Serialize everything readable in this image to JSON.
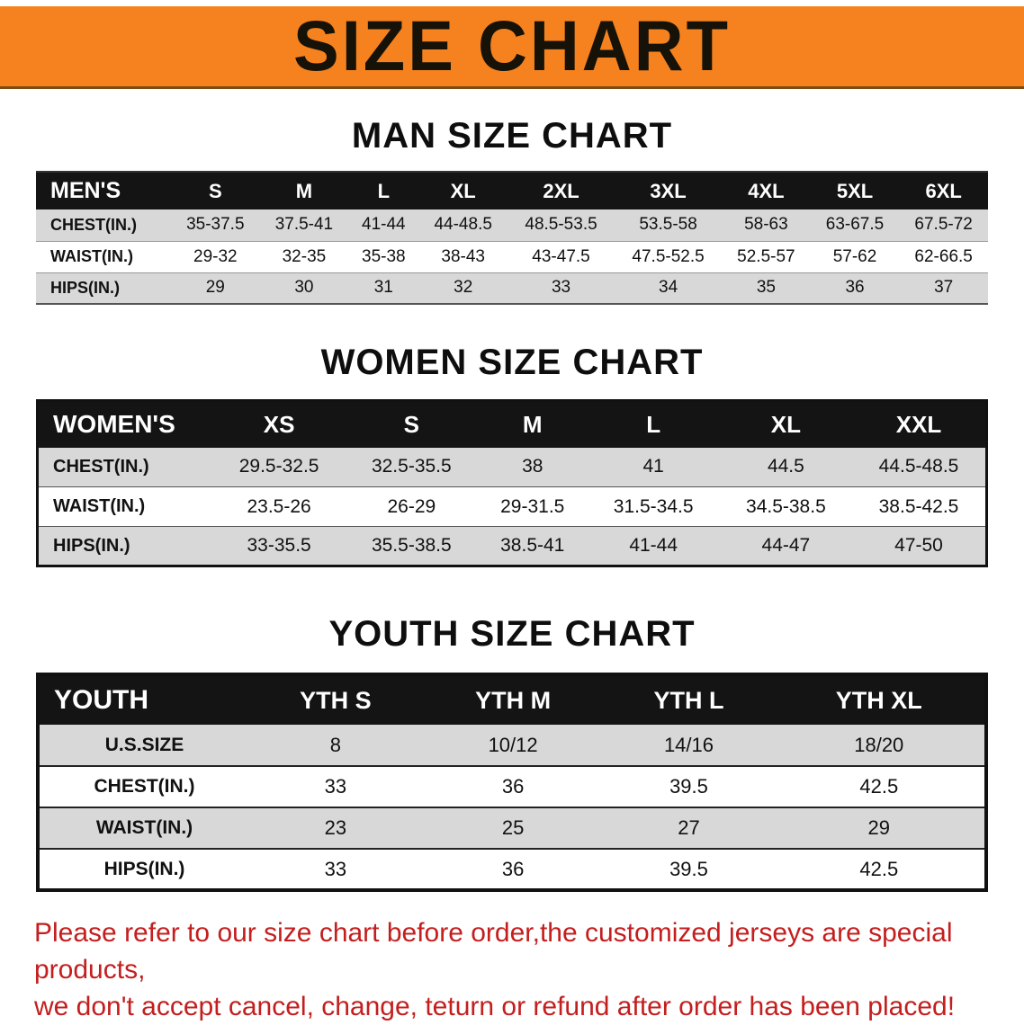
{
  "banner": {
    "title": "SIZE CHART"
  },
  "man_section": {
    "heading": "MAN SIZE CHART",
    "table": {
      "header": [
        "MEN'S",
        "S",
        "M",
        "L",
        "XL",
        "2XL",
        "3XL",
        "4XL",
        "5XL",
        "6XL"
      ],
      "rows": [
        [
          "CHEST(IN.)",
          "35-37.5",
          "37.5-41",
          "41-44",
          "44-48.5",
          "48.5-53.5",
          "53.5-58",
          "58-63",
          "63-67.5",
          "67.5-72"
        ],
        [
          "WAIST(IN.)",
          "29-32",
          "32-35",
          "35-38",
          "38-43",
          "43-47.5",
          "47.5-52.5",
          "52.5-57",
          "57-62",
          "62-66.5"
        ],
        [
          "HIPS(IN.)",
          "29",
          "30",
          "31",
          "32",
          "33",
          "34",
          "35",
          "36",
          "37"
        ]
      ]
    }
  },
  "women_section": {
    "heading": "WOMEN SIZE CHART",
    "table": {
      "header": [
        "WOMEN'S",
        "XS",
        "S",
        "M",
        "L",
        "XL",
        "XXL"
      ],
      "rows": [
        [
          "CHEST(IN.)",
          "29.5-32.5",
          "32.5-35.5",
          "38",
          "41",
          "44.5",
          "44.5-48.5"
        ],
        [
          "WAIST(IN.)",
          "23.5-26",
          "26-29",
          "29-31.5",
          "31.5-34.5",
          "34.5-38.5",
          "38.5-42.5"
        ],
        [
          "HIPS(IN.)",
          "33-35.5",
          "35.5-38.5",
          "38.5-41",
          "41-44",
          "44-47",
          "47-50"
        ]
      ]
    }
  },
  "youth_section": {
    "heading": "YOUTH SIZE CHART",
    "table": {
      "header": [
        "YOUTH",
        "YTH S",
        "YTH M",
        "YTH L",
        "YTH XL"
      ],
      "rows": [
        [
          "U.S.SIZE",
          "8",
          "10/12",
          "14/16",
          "18/20"
        ],
        [
          "CHEST(IN.)",
          "33",
          "36",
          "39.5",
          "42.5"
        ],
        [
          "WAIST(IN.)",
          "23",
          "25",
          "27",
          "29"
        ],
        [
          "HIPS(IN.)",
          "33",
          "36",
          "39.5",
          "42.5"
        ]
      ]
    }
  },
  "disclaimer": {
    "line1": "Please refer to our size chart before order,the customized jerseys are special products,",
    "line2": "we don't accept cancel, change, teturn or refund after order has been placed!"
  },
  "colors": {
    "banner_bg": "#f5821e",
    "banner_edge": "#7a4a12",
    "table_header_bg": "#141414",
    "table_header_text": "#ffffff",
    "row_alt_bg": "#d8d8d8",
    "disclaimer_text": "#c41e1e"
  }
}
